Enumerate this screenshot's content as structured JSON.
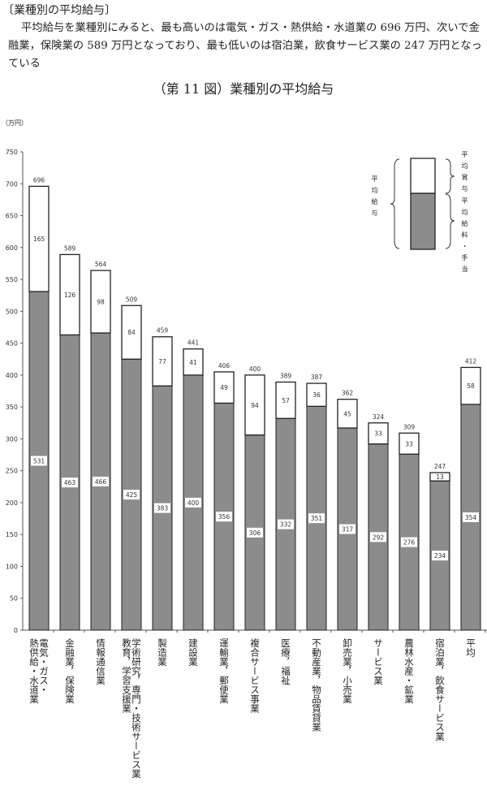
{
  "document": {
    "heading": "〔業種別の平均給与〕",
    "paragraph": "平均給与を業種別にみると、最も高いのは電気・ガス・熱供給・水道業の 696 万円、次いで金融業，保険業の 589 万円となっており、最も低いのは宿泊業，飲食サービス業の 247 万円となっている"
  },
  "chart_data": {
    "type": "bar",
    "stacked": true,
    "title": "（第 11 図）業種別の平均給与",
    "ylabel": "（万円）",
    "ylim": [
      0,
      750
    ],
    "yticks": [
      0,
      50,
      100,
      150,
      200,
      250,
      300,
      350,
      400,
      450,
      500,
      550,
      600,
      650,
      700,
      750
    ],
    "grid": false,
    "categories": [
      "電気・ガス・\n熱供給・水道業",
      "金融業，保険業",
      "情報通信業",
      "学術研究，専門・技術サービス業\n教育，学習支援業",
      "製造業",
      "建設業",
      "運輸業，郵便業",
      "複合サービス事業",
      "医療，福祉",
      "不動産業，物品賃貸業",
      "卸売業，小売業",
      "サービス業",
      "農林水産・鉱業",
      "宿泊業，飲食サービス業",
      "平均"
    ],
    "series": [
      {
        "name": "平均給料・手当",
        "color": "#8c8c8c",
        "values": [
          531,
          463,
          466,
          425,
          383,
          400,
          356,
          306,
          332,
          351,
          317,
          292,
          276,
          234,
          354
        ]
      },
      {
        "name": "平均賞与",
        "color": "#ffffff",
        "values": [
          165,
          126,
          98,
          84,
          77,
          41,
          49,
          94,
          57,
          36,
          45,
          33,
          33,
          13,
          58
        ]
      }
    ],
    "totals": [
      696,
      589,
      564,
      509,
      459,
      441,
      406,
      400,
      389,
      387,
      362,
      324,
      309,
      247,
      412
    ],
    "legend": {
      "position": "top-right",
      "total_label": "平均給与",
      "bonus_label": "平均賞与",
      "base_label": "平均給料・手当"
    }
  }
}
